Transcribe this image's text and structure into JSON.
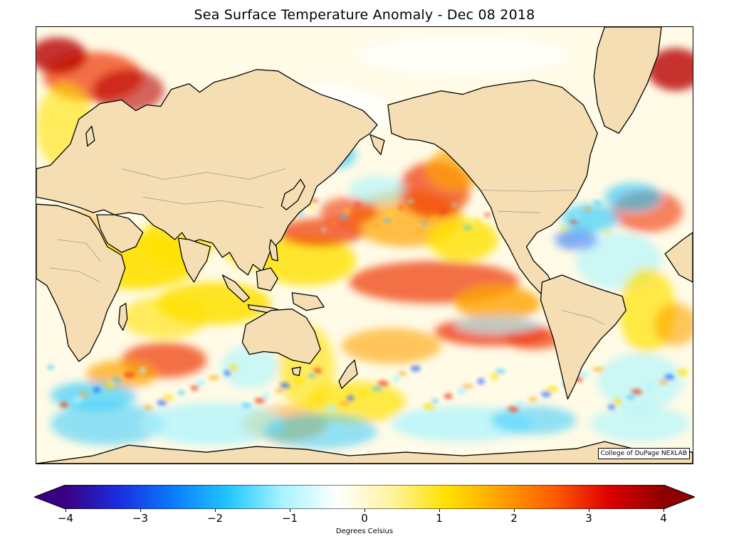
{
  "title": "Sea Surface Temperature Anomaly - Dec 08 2018",
  "credit": "College of DuPage NEXLAB",
  "colorbar": {
    "label": "Degrees Celsius",
    "ticks": [
      "−4",
      "−3",
      "−2",
      "−1",
      "0",
      "1",
      "2",
      "3",
      "4"
    ],
    "range": [
      -4,
      4
    ],
    "colors": [
      "#3a0082",
      "#1a2ee0",
      "#0a7dff",
      "#22c6ff",
      "#a8f4ff",
      "#ffffff",
      "#fff4a0",
      "#ffe100",
      "#ffa200",
      "#ff5a00",
      "#dd0000",
      "#8f0000"
    ]
  },
  "map": {
    "land_color": "#f5deb3",
    "ocean_base_color": "#fffbe6"
  }
}
